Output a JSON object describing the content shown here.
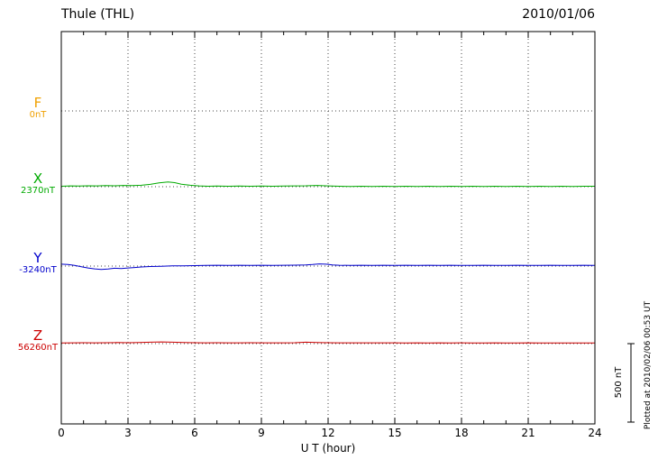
{
  "header": {
    "title": "Thule (THL)",
    "date": "2010/01/06"
  },
  "xaxis": {
    "label": "U T (hour)",
    "ticks": [
      "0",
      "3",
      "6",
      "9",
      "12",
      "15",
      "18",
      "21",
      "24"
    ]
  },
  "scalebar": {
    "label": "500 nT",
    "nT": 500
  },
  "footer": {
    "plotted_at": "Plotted at 2010/02/06 00:53 UT"
  },
  "chart_data": {
    "type": "line",
    "title": "Thule (THL) magnetogram 2010/01/06",
    "xlabel": "U T (hour)",
    "ylabel": "",
    "xlim": [
      0,
      24
    ],
    "x_tick_step": 3,
    "grid": "dotted vertical gridlines every 3 hours; dotted horizontal baseline for each component",
    "legend_position": "left margin component labels",
    "scale_nT_per_division": 500,
    "axis_color": "#000000",
    "grid_color": "#444444",
    "series": [
      {
        "name": "F",
        "label": "F",
        "baseline_label": "0nT",
        "baseline_nT": 0,
        "color": "#f0a000",
        "plotted": false,
        "points": []
      },
      {
        "name": "X",
        "label": "X",
        "baseline_label": "2370nT",
        "baseline_nT": 2370,
        "color": "#00aa00",
        "plotted": true,
        "points": [
          [
            0,
            3
          ],
          [
            0.4,
            5
          ],
          [
            0.8,
            4
          ],
          [
            1.2,
            6
          ],
          [
            1.6,
            5
          ],
          [
            2,
            7
          ],
          [
            2.4,
            6
          ],
          [
            2.8,
            8
          ],
          [
            3.2,
            7
          ],
          [
            3.6,
            9
          ],
          [
            4,
            15
          ],
          [
            4.4,
            24
          ],
          [
            4.8,
            30
          ],
          [
            5.1,
            26
          ],
          [
            5.4,
            16
          ],
          [
            5.8,
            9
          ],
          [
            6.2,
            5
          ],
          [
            6.6,
            3
          ],
          [
            7,
            4
          ],
          [
            7.5,
            3
          ],
          [
            8,
            4
          ],
          [
            8.5,
            3
          ],
          [
            9,
            4
          ],
          [
            9.5,
            3
          ],
          [
            10,
            4
          ],
          [
            10.5,
            5
          ],
          [
            11,
            6
          ],
          [
            11.5,
            8
          ],
          [
            12,
            5
          ],
          [
            12.5,
            3
          ],
          [
            13,
            2
          ],
          [
            13.5,
            3
          ],
          [
            14,
            2
          ],
          [
            14.5,
            3
          ],
          [
            15,
            2
          ],
          [
            15.5,
            3
          ],
          [
            16,
            2
          ],
          [
            16.5,
            3
          ],
          [
            17,
            2
          ],
          [
            17.5,
            3
          ],
          [
            18,
            2
          ],
          [
            18.5,
            3
          ],
          [
            19,
            2
          ],
          [
            19.5,
            3
          ],
          [
            20,
            2
          ],
          [
            20.5,
            3
          ],
          [
            21,
            2
          ],
          [
            21.5,
            3
          ],
          [
            22,
            2
          ],
          [
            22.5,
            3
          ],
          [
            23,
            2
          ],
          [
            23.5,
            3
          ],
          [
            24,
            3
          ]
        ]
      },
      {
        "name": "Y",
        "label": "Y",
        "baseline_label": "-3240nT",
        "baseline_nT": -3240,
        "color": "#0000cc",
        "plotted": true,
        "points": [
          [
            0,
            12
          ],
          [
            0.3,
            10
          ],
          [
            0.6,
            4
          ],
          [
            0.9,
            -4
          ],
          [
            1.2,
            -12
          ],
          [
            1.5,
            -18
          ],
          [
            1.8,
            -22
          ],
          [
            2.1,
            -19
          ],
          [
            2.4,
            -14
          ],
          [
            2.7,
            -16
          ],
          [
            3,
            -12
          ],
          [
            3.3,
            -9
          ],
          [
            3.6,
            -6
          ],
          [
            4,
            -3
          ],
          [
            4.5,
            -1
          ],
          [
            5,
            1
          ],
          [
            5.5,
            2
          ],
          [
            6,
            3
          ],
          [
            6.5,
            4
          ],
          [
            7,
            5
          ],
          [
            7.5,
            4
          ],
          [
            8,
            5
          ],
          [
            8.5,
            4
          ],
          [
            9,
            5
          ],
          [
            9.5,
            4
          ],
          [
            10,
            5
          ],
          [
            10.5,
            6
          ],
          [
            11,
            7
          ],
          [
            11.3,
            10
          ],
          [
            11.6,
            14
          ],
          [
            11.9,
            12
          ],
          [
            12.2,
            7
          ],
          [
            12.5,
            5
          ],
          [
            13,
            4
          ],
          [
            13.5,
            5
          ],
          [
            14,
            4
          ],
          [
            14.5,
            5
          ],
          [
            15,
            4
          ],
          [
            15.5,
            5
          ],
          [
            16,
            4
          ],
          [
            16.5,
            5
          ],
          [
            17,
            4
          ],
          [
            17.5,
            5
          ],
          [
            18,
            4
          ],
          [
            18.5,
            4
          ],
          [
            19,
            5
          ],
          [
            19.5,
            4
          ],
          [
            20,
            4
          ],
          [
            20.5,
            5
          ],
          [
            21,
            4
          ],
          [
            21.5,
            4
          ],
          [
            22,
            5
          ],
          [
            22.5,
            4
          ],
          [
            23,
            4
          ],
          [
            23.5,
            5
          ],
          [
            24,
            4
          ]
        ]
      },
      {
        "name": "Z",
        "label": "Z",
        "baseline_label": "56260nT",
        "baseline_nT": 56260,
        "color": "#cc0000",
        "plotted": true,
        "points": [
          [
            0,
            4
          ],
          [
            0.5,
            5
          ],
          [
            1,
            6
          ],
          [
            1.5,
            5
          ],
          [
            2,
            6
          ],
          [
            2.5,
            7
          ],
          [
            3,
            6
          ],
          [
            3.5,
            7
          ],
          [
            4,
            9
          ],
          [
            4.5,
            11
          ],
          [
            5,
            9
          ],
          [
            5.5,
            7
          ],
          [
            6,
            6
          ],
          [
            6.5,
            5
          ],
          [
            7,
            6
          ],
          [
            7.5,
            5
          ],
          [
            8,
            5
          ],
          [
            8.5,
            6
          ],
          [
            9,
            5
          ],
          [
            9.5,
            5
          ],
          [
            10,
            5
          ],
          [
            10.5,
            6
          ],
          [
            11,
            9
          ],
          [
            11.5,
            7
          ],
          [
            12,
            6
          ],
          [
            12.5,
            5
          ],
          [
            13,
            5
          ],
          [
            13.5,
            5
          ],
          [
            14,
            5
          ],
          [
            14.5,
            5
          ],
          [
            15,
            5
          ],
          [
            15.5,
            4
          ],
          [
            16,
            5
          ],
          [
            16.5,
            4
          ],
          [
            17,
            5
          ],
          [
            17.5,
            4
          ],
          [
            18,
            5
          ],
          [
            18.5,
            4
          ],
          [
            19,
            4
          ],
          [
            19.5,
            5
          ],
          [
            20,
            4
          ],
          [
            20.5,
            4
          ],
          [
            21,
            5
          ],
          [
            21.5,
            4
          ],
          [
            22,
            4
          ],
          [
            22.5,
            4
          ],
          [
            23,
            4
          ],
          [
            23.5,
            4
          ],
          [
            24,
            4
          ]
        ]
      }
    ]
  }
}
